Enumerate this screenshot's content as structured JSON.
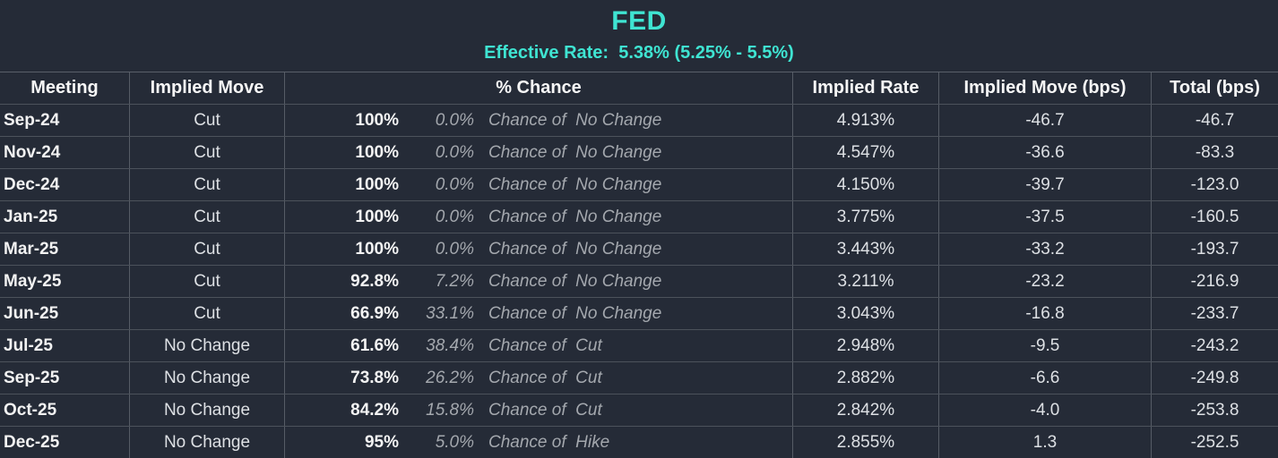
{
  "colors": {
    "background": "#252b37",
    "accent_cyan": "#3fe4d2",
    "grid_line": "#565c66",
    "row_line": "#4c525b",
    "muted_italic_text": "#a4a8ae"
  },
  "header": {
    "title": "FED",
    "subtitle": "Effective Rate:  5.38% (5.25% - 5.5%)"
  },
  "table": {
    "columns": {
      "meeting": "Meeting",
      "implied_move": "Implied Move",
      "chance": "% Chance",
      "implied_rate": "Implied Rate",
      "implied_move_bps": "Implied Move (bps)",
      "total_bps": "Total (bps)"
    },
    "rows": [
      {
        "meeting": "Sep-24",
        "implied_move": "Cut",
        "chance_main": "100%",
        "chance_alt": "0.0%",
        "chance_label": "Chance of  No Change",
        "implied_rate": "4.913%",
        "implied_move_bps": "-46.7",
        "total_bps": "-46.7"
      },
      {
        "meeting": "Nov-24",
        "implied_move": "Cut",
        "chance_main": "100%",
        "chance_alt": "0.0%",
        "chance_label": "Chance of  No Change",
        "implied_rate": "4.547%",
        "implied_move_bps": "-36.6",
        "total_bps": "-83.3"
      },
      {
        "meeting": "Dec-24",
        "implied_move": "Cut",
        "chance_main": "100%",
        "chance_alt": "0.0%",
        "chance_label": "Chance of  No Change",
        "implied_rate": "4.150%",
        "implied_move_bps": "-39.7",
        "total_bps": "-123.0"
      },
      {
        "meeting": "Jan-25",
        "implied_move": "Cut",
        "chance_main": "100%",
        "chance_alt": "0.0%",
        "chance_label": "Chance of  No Change",
        "implied_rate": "3.775%",
        "implied_move_bps": "-37.5",
        "total_bps": "-160.5"
      },
      {
        "meeting": "Mar-25",
        "implied_move": "Cut",
        "chance_main": "100%",
        "chance_alt": "0.0%",
        "chance_label": "Chance of  No Change",
        "implied_rate": "3.443%",
        "implied_move_bps": "-33.2",
        "total_bps": "-193.7"
      },
      {
        "meeting": "May-25",
        "implied_move": "Cut",
        "chance_main": "92.8%",
        "chance_alt": "7.2%",
        "chance_label": "Chance of  No Change",
        "implied_rate": "3.211%",
        "implied_move_bps": "-23.2",
        "total_bps": "-216.9"
      },
      {
        "meeting": "Jun-25",
        "implied_move": "Cut",
        "chance_main": "66.9%",
        "chance_alt": "33.1%",
        "chance_label": "Chance of  No Change",
        "implied_rate": "3.043%",
        "implied_move_bps": "-16.8",
        "total_bps": "-233.7"
      },
      {
        "meeting": "Jul-25",
        "implied_move": "No Change",
        "chance_main": "61.6%",
        "chance_alt": "38.4%",
        "chance_label": "Chance of  Cut",
        "implied_rate": "2.948%",
        "implied_move_bps": "-9.5",
        "total_bps": "-243.2"
      },
      {
        "meeting": "Sep-25",
        "implied_move": "No Change",
        "chance_main": "73.8%",
        "chance_alt": "26.2%",
        "chance_label": "Chance of  Cut",
        "implied_rate": "2.882%",
        "implied_move_bps": "-6.6",
        "total_bps": "-249.8"
      },
      {
        "meeting": "Oct-25",
        "implied_move": "No Change",
        "chance_main": "84.2%",
        "chance_alt": "15.8%",
        "chance_label": "Chance of  Cut",
        "implied_rate": "2.842%",
        "implied_move_bps": "-4.0",
        "total_bps": "-253.8"
      },
      {
        "meeting": "Dec-25",
        "implied_move": "No Change",
        "chance_main": "95%",
        "chance_alt": "5.0%",
        "chance_label": "Chance of  Hike",
        "implied_rate": "2.855%",
        "implied_move_bps": "1.3",
        "total_bps": "-252.5"
      }
    ]
  }
}
